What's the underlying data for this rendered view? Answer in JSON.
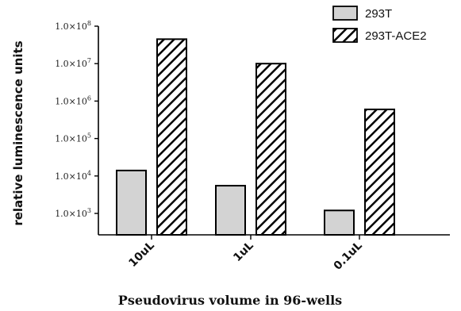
{
  "chart_data": {
    "type": "bar",
    "categories": [
      "10uL",
      "1uL",
      "0.1uL"
    ],
    "series": [
      {
        "name": "293T",
        "values": [
          14000,
          5500,
          1200
        ],
        "fill": "#d3d3d3",
        "pattern": "solid"
      },
      {
        "name": "293T-ACE2",
        "values": [
          45000000,
          10000000,
          600000
        ],
        "fill": "#ffffff",
        "pattern": "diagonal-hatch"
      }
    ],
    "title": "",
    "xlabel": "Pseudovirus volume in 96-wells",
    "ylabel": "relative luminescence units",
    "yscale": "log",
    "ylim": [
      200,
      100000000
    ],
    "yticks": [
      1000,
      10000,
      100000,
      1000000,
      10000000,
      100000000
    ],
    "ytick_labels": [
      {
        "mant": "1.0×10",
        "exp": "3"
      },
      {
        "mant": "1.0×10",
        "exp": "4"
      },
      {
        "mant": "1.0×10",
        "exp": "5"
      },
      {
        "mant": "1.0×10",
        "exp": "6"
      },
      {
        "mant": "1.0×10",
        "exp": "7"
      },
      {
        "mant": "1.0×10",
        "exp": "8"
      }
    ],
    "legend_position": "top-right",
    "grid": false
  }
}
